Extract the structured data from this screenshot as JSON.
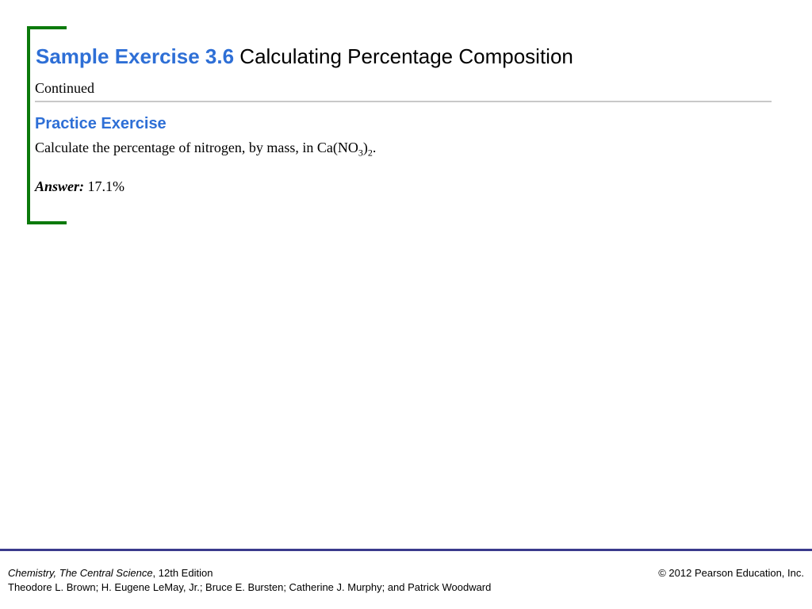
{
  "header": {
    "title_accent": "Sample Exercise 3.6",
    "title_rest": "Calculating Percentage Composition",
    "subtitle": "Continued"
  },
  "practice": {
    "heading": "Practice Exercise",
    "question_prefix": "Calculate the percentage of nitrogen, by mass, in Ca(NO",
    "question_sub1": "3",
    "question_mid": ")",
    "question_sub2": "2",
    "question_suffix": ".",
    "answer_label": "Answer:",
    "answer_value": "17.1%"
  },
  "footer": {
    "book_title": "Chemistry, The Central Science",
    "edition": ", 12th Edition",
    "authors": "Theodore L. Brown; H. Eugene LeMay, Jr.; Bruce E. Bursten; Catherine J. Murphy; and Patrick Woodward",
    "copyright": "© 2012 Pearson Education, Inc."
  },
  "colors": {
    "accent_blue": "#2e6fd6",
    "bracket_green": "#0b7a0b",
    "footer_rule": "#3a3a8c"
  }
}
